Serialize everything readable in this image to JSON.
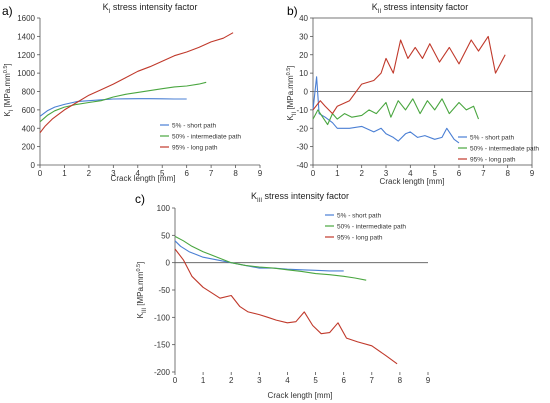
{
  "chart_data": [
    {
      "panel": "a)",
      "type": "line",
      "title": "K_I stress intensity factor",
      "title_base": "K",
      "title_sub": "I",
      "title_rest": " stress intensity factor",
      "xlabel": "Crack length [mm]",
      "ylabel_base": "K",
      "ylabel_sub": "I",
      "ylabel_rest": " [MPa.mm",
      "ylabel_sup": "0.5",
      "ylabel_end": "]",
      "xlim": [
        0,
        9
      ],
      "ylim": [
        0,
        1600
      ],
      "xticks": [
        0,
        1,
        2,
        3,
        4,
        5,
        6,
        7,
        8,
        9
      ],
      "yticks": [
        0,
        200,
        400,
        600,
        800,
        1000,
        1200,
        1400,
        1600
      ],
      "legend": "center-right",
      "series": [
        {
          "name": "5% - short path",
          "color": "#4a7fd4",
          "points": [
            [
              0,
              530
            ],
            [
              0.3,
              590
            ],
            [
              0.6,
              630
            ],
            [
              1,
              660
            ],
            [
              1.5,
              690
            ],
            [
              2,
              700
            ],
            [
              2.5,
              710
            ],
            [
              3,
              718
            ],
            [
              3.5,
              720
            ],
            [
              4,
              722
            ],
            [
              4.5,
              722
            ],
            [
              5,
              720
            ],
            [
              5.5,
              718
            ],
            [
              6,
              718
            ]
          ]
        },
        {
          "name": "50% - intermediate path",
          "color": "#4aa640",
          "points": [
            [
              0,
              470
            ],
            [
              0.3,
              540
            ],
            [
              0.6,
              590
            ],
            [
              1,
              630
            ],
            [
              1.5,
              660
            ],
            [
              2,
              680
            ],
            [
              2.5,
              700
            ],
            [
              3,
              740
            ],
            [
              3.5,
              770
            ],
            [
              4,
              790
            ],
            [
              4.5,
              810
            ],
            [
              5,
              830
            ],
            [
              5.5,
              850
            ],
            [
              6,
              860
            ],
            [
              6.5,
              880
            ],
            [
              6.8,
              900
            ]
          ]
        },
        {
          "name": "95% - long path",
          "color": "#c0392b",
          "points": [
            [
              0,
              350
            ],
            [
              0.2,
              420
            ],
            [
              0.5,
              500
            ],
            [
              1,
              600
            ],
            [
              1.5,
              680
            ],
            [
              2,
              760
            ],
            [
              2.5,
              820
            ],
            [
              3,
              880
            ],
            [
              3.5,
              950
            ],
            [
              4,
              1020
            ],
            [
              4.5,
              1070
            ],
            [
              5,
              1130
            ],
            [
              5.5,
              1190
            ],
            [
              6,
              1230
            ],
            [
              6.5,
              1280
            ],
            [
              7,
              1340
            ],
            [
              7.5,
              1380
            ],
            [
              7.9,
              1440
            ]
          ]
        }
      ]
    },
    {
      "panel": "b)",
      "type": "line",
      "title": "K_II stress intensity factor",
      "title_base": "K",
      "title_sub": "II",
      "title_rest": " stress intensity factor",
      "xlabel": "Crack length [mm]",
      "ylabel_base": "K",
      "ylabel_sub": "II",
      "ylabel_rest": " [MPa.mm",
      "ylabel_sup": "0.5",
      "ylabel_end": "]",
      "xlim": [
        0,
        9
      ],
      "ylim": [
        -40,
        40
      ],
      "xticks": [
        0,
        1,
        2,
        3,
        4,
        5,
        6,
        7,
        8,
        9
      ],
      "yticks": [
        -40,
        -30,
        -20,
        -10,
        0,
        10,
        20,
        30,
        40
      ],
      "legend": "bottom-right",
      "series": [
        {
          "name": "5% - short path",
          "color": "#4a7fd4",
          "points": [
            [
              0,
              -10
            ],
            [
              0.15,
              8
            ],
            [
              0.25,
              -12
            ],
            [
              0.5,
              -14
            ],
            [
              0.8,
              -17
            ],
            [
              1,
              -20
            ],
            [
              1.5,
              -20
            ],
            [
              2,
              -19
            ],
            [
              2.5,
              -22
            ],
            [
              2.8,
              -20
            ],
            [
              3,
              -23
            ],
            [
              3.3,
              -25
            ],
            [
              3.5,
              -27
            ],
            [
              3.8,
              -23
            ],
            [
              4,
              -22
            ],
            [
              4.3,
              -25
            ],
            [
              4.6,
              -24
            ],
            [
              5,
              -26
            ],
            [
              5.3,
              -25
            ],
            [
              5.5,
              -20
            ],
            [
              5.8,
              -26
            ],
            [
              6,
              -28
            ]
          ]
        },
        {
          "name": "50% - intermediate path",
          "color": "#4aa640",
          "points": [
            [
              0,
              -15
            ],
            [
              0.2,
              -10
            ],
            [
              0.4,
              -14
            ],
            [
              0.6,
              -18
            ],
            [
              0.8,
              -12
            ],
            [
              1,
              -15
            ],
            [
              1.3,
              -12
            ],
            [
              1.6,
              -14
            ],
            [
              2,
              -13
            ],
            [
              2.3,
              -10
            ],
            [
              2.6,
              -12
            ],
            [
              3,
              -6
            ],
            [
              3.2,
              -14
            ],
            [
              3.5,
              -5
            ],
            [
              3.8,
              -10
            ],
            [
              4.1,
              -4
            ],
            [
              4.4,
              -12
            ],
            [
              4.7,
              -5
            ],
            [
              5,
              -10
            ],
            [
              5.3,
              -4
            ],
            [
              5.6,
              -12
            ],
            [
              6,
              -6
            ],
            [
              6.3,
              -10
            ],
            [
              6.6,
              -8
            ],
            [
              6.8,
              -15
            ]
          ]
        },
        {
          "name": "95% - long path",
          "color": "#c0392b",
          "points": [
            [
              0,
              -10
            ],
            [
              0.3,
              -5
            ],
            [
              0.5,
              -8
            ],
            [
              0.8,
              -12
            ],
            [
              1,
              -8
            ],
            [
              1.5,
              -5
            ],
            [
              2,
              4
            ],
            [
              2.5,
              6
            ],
            [
              2.8,
              10
            ],
            [
              3,
              18
            ],
            [
              3.3,
              10
            ],
            [
              3.6,
              28
            ],
            [
              3.9,
              18
            ],
            [
              4.2,
              24
            ],
            [
              4.5,
              18
            ],
            [
              4.8,
              26
            ],
            [
              5.2,
              16
            ],
            [
              5.6,
              24
            ],
            [
              6,
              15
            ],
            [
              6.5,
              28
            ],
            [
              6.8,
              22
            ],
            [
              7.2,
              30
            ],
            [
              7.5,
              10
            ],
            [
              7.9,
              20
            ]
          ]
        }
      ]
    },
    {
      "panel": "c)",
      "type": "line",
      "title": "K_III stress intensity factor",
      "title_base": "K",
      "title_sub": "III",
      "title_rest": " stress intensity factor",
      "xlabel": "Crack length [mm]",
      "ylabel_base": "K",
      "ylabel_sub": "III",
      "ylabel_rest": " [MPa.mm",
      "ylabel_sup": "0.5",
      "ylabel_end": "]",
      "xlim": [
        0,
        9
      ],
      "ylim": [
        -200,
        100
      ],
      "xticks": [
        0,
        1,
        2,
        3,
        4,
        5,
        6,
        7,
        8,
        9
      ],
      "yticks": [
        -200,
        -150,
        -100,
        -50,
        0,
        50,
        100
      ],
      "legend": "top-right",
      "series": [
        {
          "name": "5% - short path",
          "color": "#4a7fd4",
          "points": [
            [
              0,
              40
            ],
            [
              0.2,
              30
            ],
            [
              0.5,
              20
            ],
            [
              1,
              10
            ],
            [
              1.5,
              5
            ],
            [
              2,
              0
            ],
            [
              2.5,
              -5
            ],
            [
              3,
              -10
            ],
            [
              3.5,
              -10
            ],
            [
              4,
              -12
            ],
            [
              4.5,
              -13
            ],
            [
              5,
              -14
            ],
            [
              5.5,
              -15
            ],
            [
              6,
              -15
            ]
          ]
        },
        {
          "name": "50% - intermediate path",
          "color": "#4aa640",
          "points": [
            [
              0,
              48
            ],
            [
              0.3,
              40
            ],
            [
              0.6,
              30
            ],
            [
              1,
              20
            ],
            [
              1.5,
              10
            ],
            [
              2,
              0
            ],
            [
              2.5,
              -5
            ],
            [
              3,
              -8
            ],
            [
              3.5,
              -10
            ],
            [
              4,
              -13
            ],
            [
              4.5,
              -16
            ],
            [
              5,
              -20
            ],
            [
              5.5,
              -22
            ],
            [
              6,
              -25
            ],
            [
              6.4,
              -28
            ],
            [
              6.8,
              -32
            ]
          ]
        },
        {
          "name": "95% - long path",
          "color": "#c0392b",
          "points": [
            [
              0,
              25
            ],
            [
              0.3,
              5
            ],
            [
              0.6,
              -25
            ],
            [
              1,
              -45
            ],
            [
              1.3,
              -55
            ],
            [
              1.6,
              -65
            ],
            [
              2,
              -60
            ],
            [
              2.3,
              -80
            ],
            [
              2.6,
              -90
            ],
            [
              3,
              -95
            ],
            [
              3.3,
              -100
            ],
            [
              3.6,
              -105
            ],
            [
              4,
              -110
            ],
            [
              4.3,
              -108
            ],
            [
              4.6,
              -90
            ],
            [
              4.9,
              -115
            ],
            [
              5.2,
              -130
            ],
            [
              5.5,
              -128
            ],
            [
              5.8,
              -110
            ],
            [
              6.1,
              -138
            ],
            [
              6.5,
              -145
            ],
            [
              7,
              -152
            ],
            [
              7.5,
              -170
            ],
            [
              7.9,
              -185
            ]
          ]
        }
      ]
    }
  ]
}
